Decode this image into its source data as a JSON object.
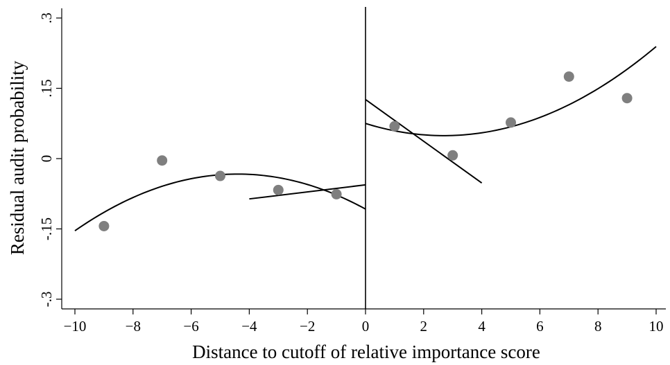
{
  "chart_data": {
    "type": "scatter",
    "xlabel": "Distance to cutoff of relative importance score",
    "ylabel": "Residual audit probability",
    "xlim": [
      -10,
      10
    ],
    "ylim": [
      -0.3,
      0.3
    ],
    "x_ticks": [
      -10,
      -8,
      -6,
      -4,
      -2,
      0,
      2,
      4,
      6,
      8,
      10
    ],
    "x_tick_labels": [
      "−10",
      "−8",
      "−6",
      "−4",
      "−2",
      "0",
      "2",
      "4",
      "6",
      "8",
      "10"
    ],
    "y_ticks": [
      -0.3,
      -0.15,
      0,
      0.15,
      0.3
    ],
    "y_tick_labels": [
      "-.3",
      "-.15",
      "0",
      ".15",
      ".3"
    ],
    "grid": false,
    "legend": false,
    "cutoff_x": 0,
    "points": [
      {
        "x": -9,
        "y": -0.144
      },
      {
        "x": -7,
        "y": -0.004
      },
      {
        "x": -5,
        "y": -0.037
      },
      {
        "x": -3,
        "y": -0.067
      },
      {
        "x": -1,
        "y": -0.076
      },
      {
        "x": 1,
        "y": 0.069
      },
      {
        "x": 3,
        "y": 0.007
      },
      {
        "x": 5,
        "y": 0.077
      },
      {
        "x": 7,
        "y": 0.175
      },
      {
        "x": 9,
        "y": 0.129
      }
    ],
    "quadratic_fits": [
      {
        "x_range": [
          -10,
          0
        ],
        "y_at_start": -0.154,
        "y_at_end": -0.108,
        "vertex": [
          -4.4,
          -0.033
        ]
      },
      {
        "x_range": [
          0,
          10
        ],
        "y_at_start": 0.075,
        "y_at_end": 0.218,
        "vertex": [
          2.7,
          0.049
        ]
      }
    ],
    "linear_fits": [
      {
        "x": [
          -4,
          0
        ],
        "y": [
          -0.086,
          -0.056
        ]
      },
      {
        "x": [
          0,
          4
        ],
        "y": [
          0.126,
          -0.052
        ]
      }
    ]
  }
}
